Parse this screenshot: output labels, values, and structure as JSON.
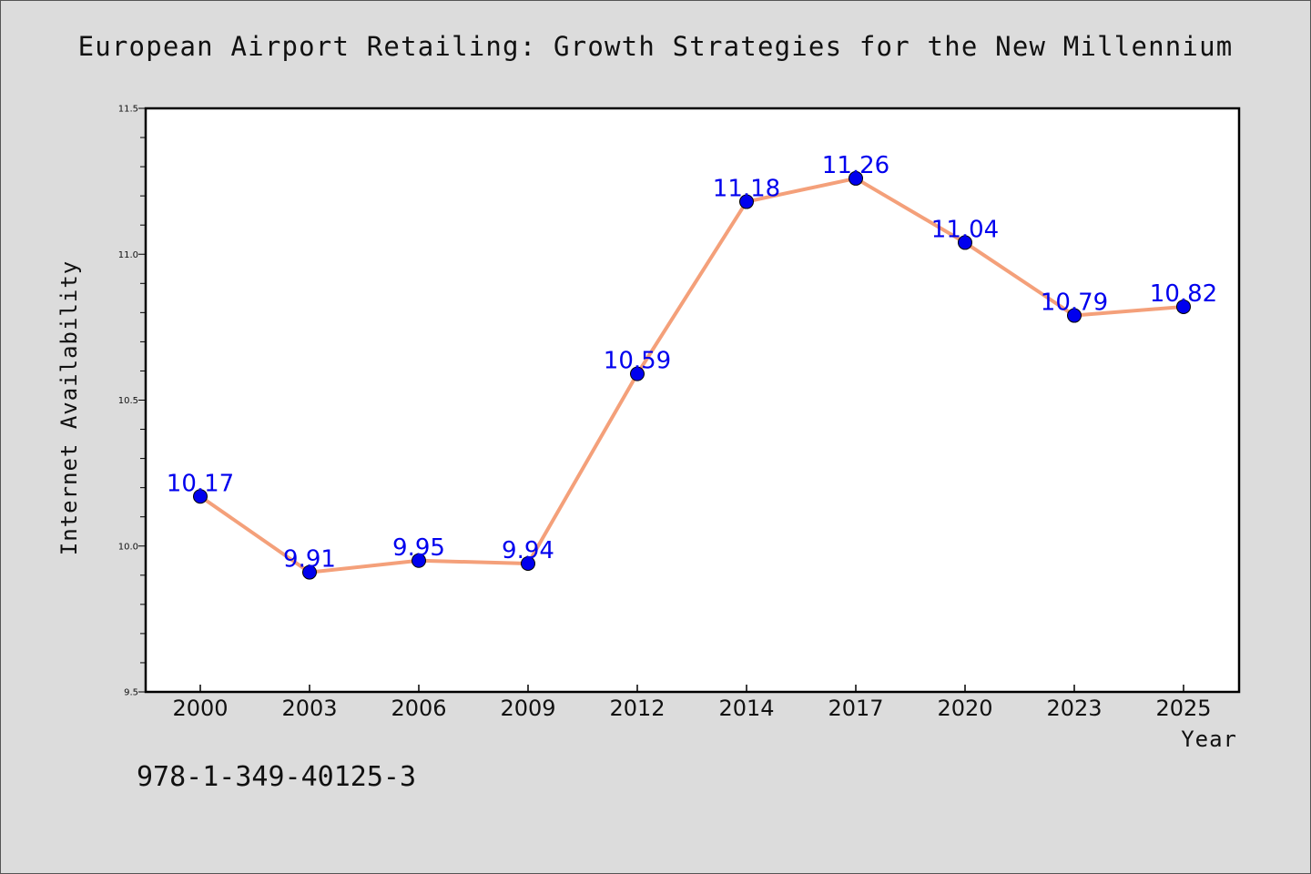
{
  "title": "European Airport Retailing: Growth Strategies for the New Millennium",
  "isbn": "978-1-349-40125-3",
  "chart_data": {
    "type": "line",
    "title": "European Airport Retailing: Growth Strategies for the New Millennium",
    "xlabel": "Year",
    "ylabel": "Internet Availability",
    "categories": [
      "2000",
      "2003",
      "2006",
      "2009",
      "2012",
      "2014",
      "2017",
      "2020",
      "2023",
      "2025"
    ],
    "series": [
      {
        "values": [
          10.17,
          9.91,
          9.95,
          9.94,
          10.59,
          11.18,
          11.26,
          11.04,
          10.79,
          10.82
        ]
      }
    ],
    "data_labels": [
      "10.17",
      "9.91",
      "9.95",
      "9.94",
      "10.59",
      "11.18",
      "11.26",
      "11.04",
      "10.79",
      "10.82"
    ],
    "ylim": [
      9.5,
      11.5
    ],
    "yticks": [
      9.5,
      10.0,
      10.5,
      11.0,
      11.5
    ],
    "ytick_labels": [
      "9.5",
      "10.0",
      "10.5",
      "11.0",
      "11.5"
    ],
    "grid": false,
    "line_color": "#f4a07a",
    "marker_color": "#0000ee",
    "label_color": "#0000ee"
  }
}
